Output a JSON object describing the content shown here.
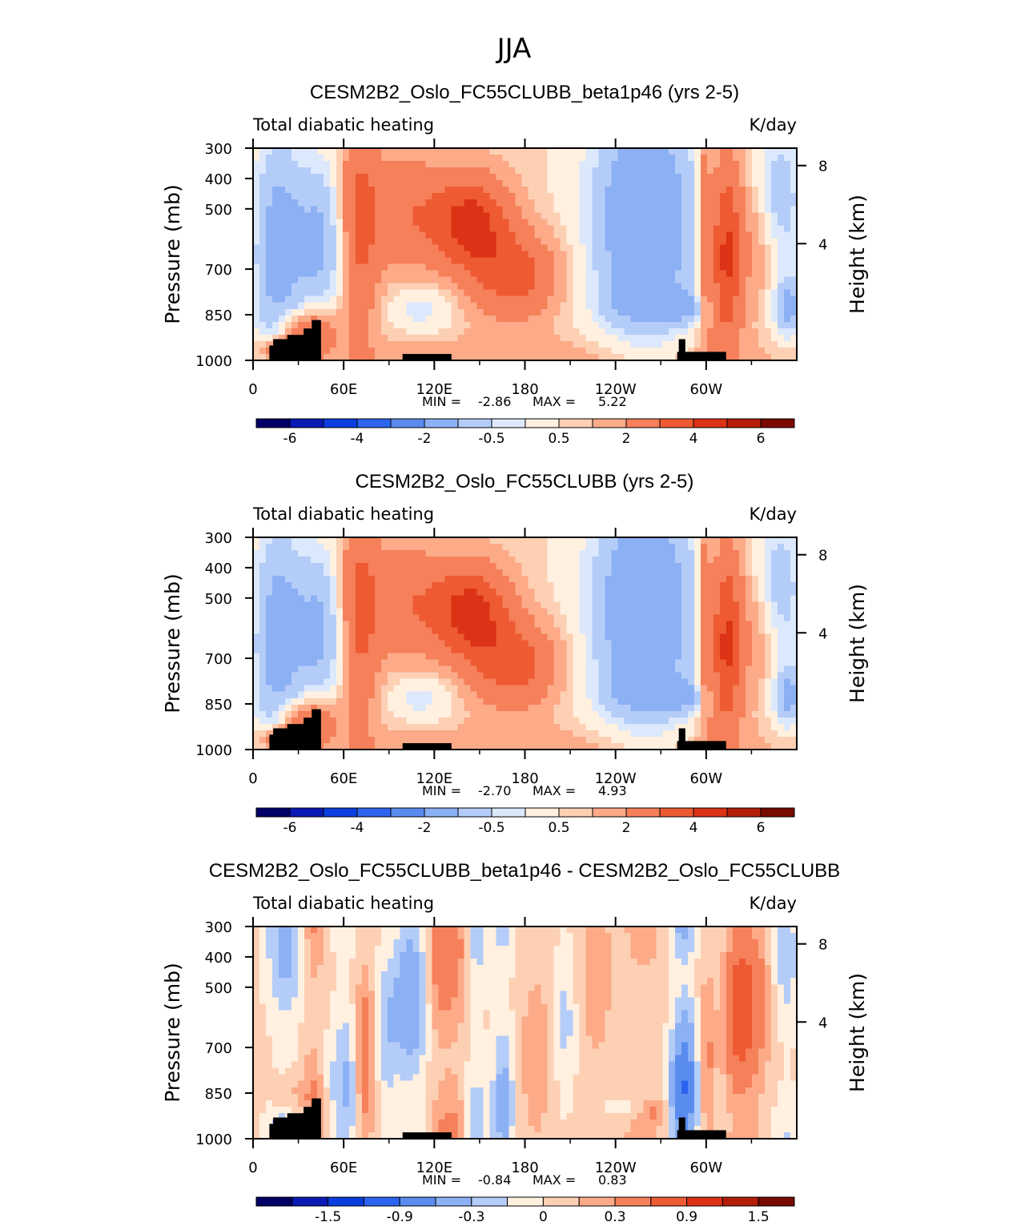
{
  "figure": {
    "season_title": "JJA"
  },
  "colors": {
    "terrain": "#000000",
    "frame": "#000000",
    "scale_bounds": [
      "#000066",
      "#0a1ab4",
      "#0a3ede",
      "#2c64f0",
      "#5a8cf0",
      "#8cb0f4",
      "#b4ccf8",
      "#dce8fc",
      "#fff0e0",
      "#fdd0b4",
      "#fcaa88",
      "#f5805a",
      "#ee5a32",
      "#dc3216",
      "#b41e0a",
      "#780a00"
    ]
  },
  "chart_data": [
    {
      "type": "heatmap",
      "title": "CESM2B2_Oslo_FC55CLUBB_beta1p46 (yrs 2-5)",
      "left_label": "Total diabatic heating",
      "right_label": "K/day",
      "ylabel": "Pressure (mb)",
      "ylabel_right": "Height (km)",
      "x_ticks": [
        "0",
        "60E",
        "120E",
        "180",
        "120W",
        "60W"
      ],
      "y_ticks": [
        "300",
        "400",
        "500",
        "700",
        "850",
        "1000"
      ],
      "height_ticks": [
        "8",
        "4"
      ],
      "min_label": "MIN =",
      "min_value": "-2.86",
      "max_label": "MAX =",
      "max_value": "5.22",
      "colorbar_labels": [
        "-6",
        "-4",
        "-2",
        "-0.5",
        "0.5",
        "2",
        "4",
        "6"
      ],
      "levels": [
        -6,
        -5,
        -4,
        -3,
        -2,
        -1,
        -0.5,
        -0.2,
        0.2,
        0.5,
        1,
        2,
        3,
        4,
        5,
        6
      ],
      "field": "total"
    },
    {
      "type": "heatmap",
      "title": "CESM2B2_Oslo_FC55CLUBB (yrs 2-5)",
      "left_label": "Total diabatic heating",
      "right_label": "K/day",
      "ylabel": "Pressure (mb)",
      "ylabel_right": "Height (km)",
      "x_ticks": [
        "0",
        "60E",
        "120E",
        "180",
        "120W",
        "60W"
      ],
      "y_ticks": [
        "300",
        "400",
        "500",
        "700",
        "850",
        "1000"
      ],
      "height_ticks": [
        "8",
        "4"
      ],
      "min_label": "MIN =",
      "min_value": "-2.70",
      "max_label": "MAX =",
      "max_value": "4.93",
      "colorbar_labels": [
        "-6",
        "-4",
        "-2",
        "-0.5",
        "0.5",
        "2",
        "4",
        "6"
      ],
      "levels": [
        -6,
        -5,
        -4,
        -3,
        -2,
        -1,
        -0.5,
        -0.2,
        0.2,
        0.5,
        1,
        2,
        3,
        4,
        5,
        6
      ],
      "field": "total"
    },
    {
      "type": "heatmap",
      "title": "CESM2B2_Oslo_FC55CLUBB_beta1p46 - CESM2B2_Oslo_FC55CLUBB",
      "left_label": "Total diabatic heating",
      "right_label": "K/day",
      "ylabel": "Pressure (mb)",
      "ylabel_right": "Height (km)",
      "x_ticks": [
        "0",
        "60E",
        "120E",
        "180",
        "120W",
        "60W"
      ],
      "y_ticks": [
        "300",
        "400",
        "500",
        "700",
        "850",
        "1000"
      ],
      "height_ticks": [
        "8",
        "4"
      ],
      "min_label": "MIN =",
      "min_value": "-0.84",
      "max_label": "MAX =",
      "max_value": "0.83",
      "colorbar_labels": [
        "-1.5",
        "-0.9",
        "-0.3",
        "0",
        "0.3",
        "0.9",
        "1.5"
      ],
      "levels": [
        -1.8,
        -1.5,
        -1.2,
        -0.9,
        -0.6,
        -0.3,
        -0.15,
        0,
        0.15,
        0.3,
        0.6,
        0.9,
        1.2,
        1.5,
        1.8
      ],
      "field": "diff"
    }
  ]
}
